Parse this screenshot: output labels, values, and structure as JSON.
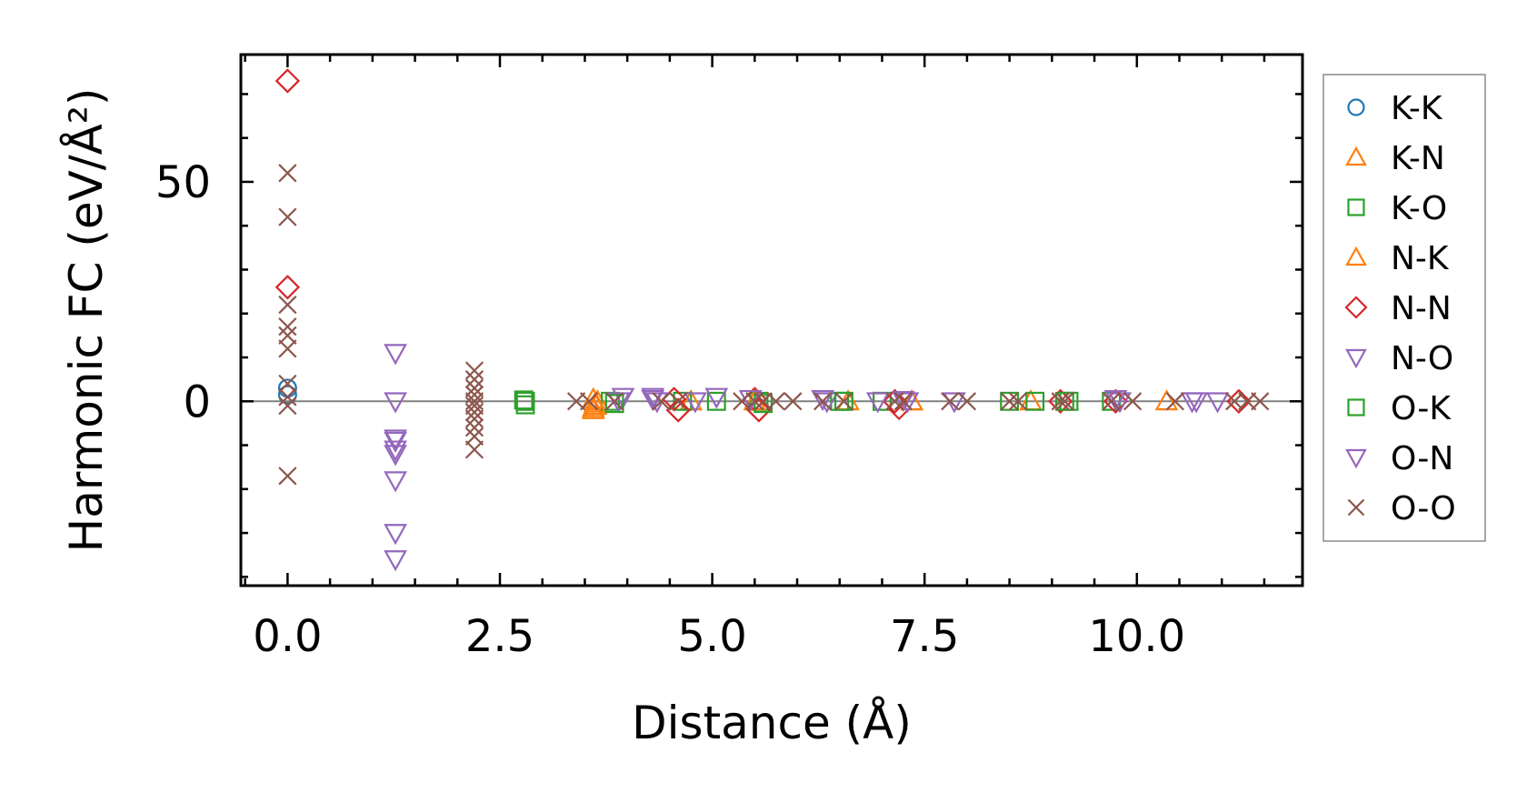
{
  "chart_data": {
    "type": "scatter",
    "xlabel": "Distance (Å)",
    "ylabel": "Harmonic FC (eV/Å²)",
    "xlim": [
      -0.55,
      11.95
    ],
    "ylim": [
      -42,
      79
    ],
    "x_ticks": [
      0.0,
      2.5,
      5.0,
      7.5,
      10.0
    ],
    "x_tick_labels": [
      "0.0",
      "2.5",
      "5.0",
      "7.5",
      "10.0"
    ],
    "y_ticks": [
      0,
      50
    ],
    "y_tick_labels": [
      "0",
      "50"
    ],
    "zero_line": true,
    "grid": false,
    "legend_position": "outside-right",
    "series": [
      {
        "name": "K-K",
        "marker": "circle",
        "color": "#1f77b4",
        "points": [
          [
            0.0,
            3.0
          ],
          [
            0.0,
            1.5
          ]
        ]
      },
      {
        "name": "K-N",
        "marker": "triangle-up",
        "color": "#ff7f0e",
        "points": [
          [
            3.6,
            -1.5
          ],
          [
            3.62,
            -0.5
          ],
          [
            3.65,
            0.0
          ],
          [
            3.6,
            -2.0
          ],
          [
            4.75,
            0.0
          ],
          [
            6.6,
            0.0
          ],
          [
            7.35,
            0.0
          ],
          [
            8.75,
            0.0
          ],
          [
            10.35,
            0.0
          ]
        ]
      },
      {
        "name": "K-O",
        "marker": "square",
        "color": "#2ca02c",
        "points": [
          [
            2.8,
            0.0
          ],
          [
            2.8,
            -0.8
          ],
          [
            3.8,
            0.0
          ],
          [
            4.65,
            0.0
          ],
          [
            5.05,
            0.0
          ],
          [
            5.55,
            0.0
          ],
          [
            6.5,
            0.0
          ],
          [
            7.0,
            0.0
          ],
          [
            8.8,
            0.0
          ],
          [
            9.2,
            0.0
          ],
          [
            9.7,
            0.0
          ]
        ]
      },
      {
        "name": "N-K",
        "marker": "triangle-up",
        "color": "#ff7f0e",
        "points": [
          [
            3.6,
            0.5
          ],
          [
            3.63,
            -1.0
          ],
          [
            5.5,
            0.0
          ],
          [
            7.35,
            0.0
          ]
        ]
      },
      {
        "name": "N-N",
        "marker": "diamond",
        "color": "#d62728",
        "points": [
          [
            0.0,
            73.0
          ],
          [
            0.0,
            26.0
          ],
          [
            4.55,
            0.5
          ],
          [
            4.6,
            -2.0
          ],
          [
            5.5,
            0.5
          ],
          [
            5.55,
            -2.0
          ],
          [
            7.15,
            0.0
          ],
          [
            7.2,
            -1.5
          ],
          [
            9.1,
            0.0
          ],
          [
            9.75,
            0.0
          ],
          [
            11.2,
            0.0
          ]
        ]
      },
      {
        "name": "N-O",
        "marker": "triangle-down",
        "color": "#9467bd",
        "points": [
          [
            1.27,
            11.0
          ],
          [
            1.27,
            0.0
          ],
          [
            1.27,
            -9.0
          ],
          [
            1.27,
            -11.0
          ],
          [
            1.27,
            -12.0
          ],
          [
            1.27,
            -18.0
          ],
          [
            1.27,
            -30.0
          ],
          [
            1.27,
            -36.0
          ],
          [
            3.9,
            0.0
          ],
          [
            3.95,
            1.0
          ],
          [
            4.3,
            1.0
          ],
          [
            4.35,
            0.0
          ],
          [
            4.8,
            0.0
          ],
          [
            5.05,
            1.0
          ],
          [
            6.35,
            0.0
          ],
          [
            6.95,
            0.0
          ],
          [
            7.3,
            0.0
          ],
          [
            7.85,
            0.0
          ],
          [
            9.8,
            0.0
          ],
          [
            10.65,
            0.0
          ],
          [
            10.95,
            0.0
          ]
        ]
      },
      {
        "name": "O-K",
        "marker": "square",
        "color": "#2ca02c",
        "points": [
          [
            2.78,
            0.3
          ],
          [
            3.85,
            -0.5
          ],
          [
            5.6,
            -0.5
          ],
          [
            6.55,
            0.0
          ],
          [
            8.5,
            0.0
          ],
          [
            9.15,
            0.0
          ]
        ]
      },
      {
        "name": "O-N",
        "marker": "triangle-down",
        "color": "#9467bd",
        "points": [
          [
            1.27,
            -8.5
          ],
          [
            4.3,
            0.5
          ],
          [
            5.45,
            0.5
          ],
          [
            6.3,
            0.5
          ],
          [
            7.25,
            0.3
          ],
          [
            9.75,
            0.5
          ],
          [
            10.7,
            0.0
          ]
        ]
      },
      {
        "name": "O-O",
        "marker": "x",
        "color": "#8c564b",
        "points": [
          [
            0.0,
            52.0
          ],
          [
            0.0,
            42.0
          ],
          [
            0.0,
            22.0
          ],
          [
            0.0,
            17.0
          ],
          [
            0.0,
            15.0
          ],
          [
            0.0,
            12.0
          ],
          [
            0.0,
            4.0
          ],
          [
            0.0,
            1.0
          ],
          [
            0.0,
            -1.0
          ],
          [
            0.0,
            -17.0
          ],
          [
            2.2,
            7.0
          ],
          [
            2.2,
            5.0
          ],
          [
            2.2,
            3.0
          ],
          [
            2.2,
            1.5
          ],
          [
            2.2,
            0.0
          ],
          [
            2.2,
            -1.0
          ],
          [
            2.2,
            -2.5
          ],
          [
            2.2,
            -4.0
          ],
          [
            2.2,
            -6.0
          ],
          [
            2.2,
            -8.0
          ],
          [
            2.2,
            -11.0
          ],
          [
            3.4,
            0.0
          ],
          [
            3.55,
            0.0
          ],
          [
            3.85,
            0.0
          ],
          [
            4.4,
            0.0
          ],
          [
            4.6,
            0.0
          ],
          [
            5.35,
            0.0
          ],
          [
            5.5,
            0.0
          ],
          [
            5.6,
            0.0
          ],
          [
            5.75,
            0.0
          ],
          [
            5.95,
            0.0
          ],
          [
            6.3,
            0.0
          ],
          [
            6.55,
            0.0
          ],
          [
            7.15,
            0.0
          ],
          [
            7.25,
            0.0
          ],
          [
            7.8,
            0.0
          ],
          [
            8.0,
            0.0
          ],
          [
            8.5,
            0.0
          ],
          [
            8.6,
            0.0
          ],
          [
            9.1,
            0.0
          ],
          [
            9.15,
            0.0
          ],
          [
            9.7,
            0.0
          ],
          [
            9.95,
            0.0
          ],
          [
            10.45,
            0.0
          ],
          [
            11.15,
            0.0
          ],
          [
            11.3,
            0.0
          ],
          [
            11.45,
            0.0
          ]
        ]
      }
    ]
  }
}
